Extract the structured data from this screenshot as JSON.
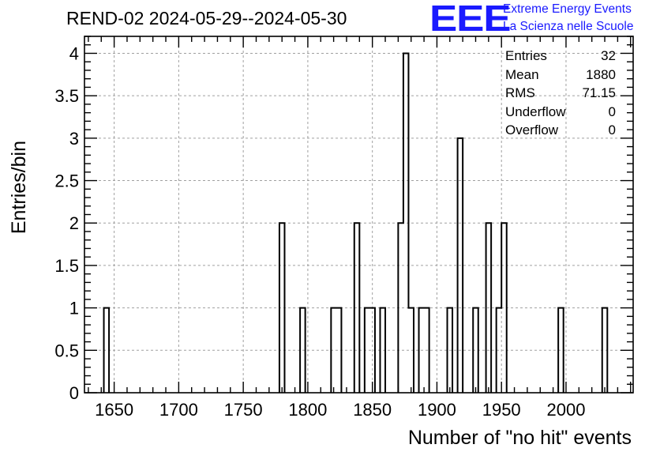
{
  "title": "REND-02 2024-05-29--2024-05-30",
  "logo": {
    "mark": "EEE",
    "line1": "Extreme Energy Events",
    "line2": "La Scienza nelle Scuole",
    "color": "#1a1aff"
  },
  "stats": [
    {
      "label": "Entries",
      "value": "32"
    },
    {
      "label": "Mean",
      "value": "1880"
    },
    {
      "label": "RMS",
      "value": "71.15"
    },
    {
      "label": "Underflow",
      "value": "0"
    },
    {
      "label": "Overflow",
      "value": "0"
    }
  ],
  "chart_data": {
    "type": "bar",
    "histogram": true,
    "xlabel": "Number of \"no hit\" events",
    "ylabel": "Entries/bin",
    "xlim": [
      1627,
      2052
    ],
    "ylim": [
      0,
      4.2
    ],
    "xticks": [
      1650,
      1700,
      1750,
      1800,
      1850,
      1900,
      1950,
      2000
    ],
    "yticks": [
      0,
      0.5,
      1,
      1.5,
      2,
      2.5,
      3,
      3.5,
      4
    ],
    "ytick_labels": [
      "0",
      "0.5",
      "1",
      "1.5",
      "2",
      "2.5",
      "3",
      "3.5",
      "4"
    ],
    "grid": true,
    "bin_width": 4,
    "bins": [
      {
        "x": 1642,
        "value": 1
      },
      {
        "x": 1778,
        "value": 2
      },
      {
        "x": 1794,
        "value": 1
      },
      {
        "x": 1818,
        "value": 1
      },
      {
        "x": 1822,
        "value": 1
      },
      {
        "x": 1836,
        "value": 2
      },
      {
        "x": 1844,
        "value": 1
      },
      {
        "x": 1848,
        "value": 1
      },
      {
        "x": 1856,
        "value": 1
      },
      {
        "x": 1870,
        "value": 2
      },
      {
        "x": 1874,
        "value": 4
      },
      {
        "x": 1878,
        "value": 1
      },
      {
        "x": 1886,
        "value": 1
      },
      {
        "x": 1890,
        "value": 1
      },
      {
        "x": 1908,
        "value": 1
      },
      {
        "x": 1916,
        "value": 3
      },
      {
        "x": 1928,
        "value": 1
      },
      {
        "x": 1938,
        "value": 2
      },
      {
        "x": 1946,
        "value": 1
      },
      {
        "x": 1950,
        "value": 2
      },
      {
        "x": 1994,
        "value": 1
      },
      {
        "x": 2028,
        "value": 1
      }
    ]
  }
}
